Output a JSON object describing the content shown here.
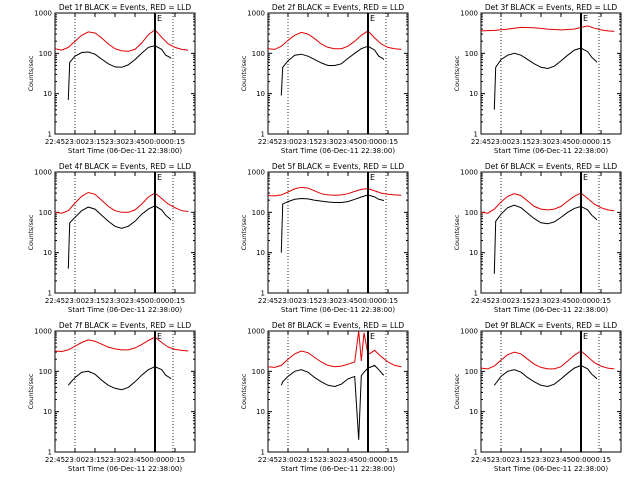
{
  "chart_data": [
    {
      "type": "line",
      "title": "Det 1f BLACK = Events, RED = LLD",
      "xlabel": "Start Time (06-Dec-11 22:38:00)",
      "ylabel": "Counts/sec",
      "x_ticks": [
        "22:45",
        "23:00",
        "23:15",
        "23:30",
        "23:45",
        "00:00",
        "00:15"
      ],
      "y_ticks": [
        "1",
        "10",
        "100",
        "1000"
      ],
      "yscale": "log",
      "ylim": [
        1,
        1000
      ],
      "xlim_minutes": [
        0,
        105
      ],
      "marker_label": "E",
      "series": [
        {
          "color": "#000000",
          "x": [
            10,
            11,
            15,
            20,
            25,
            30,
            35,
            40,
            45,
            50,
            55,
            60,
            65,
            70,
            75,
            80,
            83,
            86,
            87
          ],
          "y": [
            7,
            60,
            85,
            105,
            108,
            95,
            72,
            55,
            46,
            45,
            52,
            70,
            100,
            140,
            155,
            125,
            90,
            80,
            75
          ]
        },
        {
          "color": "#e00000",
          "x": [
            0,
            5,
            10,
            15,
            20,
            25,
            30,
            35,
            40,
            45,
            50,
            55,
            60,
            65,
            70,
            75,
            80,
            85,
            90,
            95,
            100
          ],
          "y": [
            130,
            120,
            140,
            200,
            280,
            340,
            320,
            240,
            170,
            130,
            115,
            112,
            125,
            180,
            290,
            380,
            250,
            170,
            140,
            125,
            120
          ]
        }
      ]
    },
    {
      "type": "line",
      "title": "Det 2f BLACK = Events, RED = LLD",
      "xlabel": "Start Time (06-Dec-11 22:38:00)",
      "ylabel": "Counts/sec",
      "x_ticks": [
        "22:45",
        "23:00",
        "23:15",
        "23:30",
        "23:45",
        "00:00",
        "00:15"
      ],
      "y_ticks": [
        "1",
        "10",
        "100",
        "1000"
      ],
      "yscale": "log",
      "ylim": [
        1,
        1000
      ],
      "xlim_minutes": [
        0,
        105
      ],
      "marker_label": "E",
      "series": [
        {
          "color": "#000000",
          "x": [
            10,
            11,
            15,
            20,
            25,
            30,
            35,
            40,
            45,
            50,
            55,
            60,
            65,
            70,
            75,
            80,
            83,
            86,
            87
          ],
          "y": [
            9,
            45,
            65,
            90,
            95,
            85,
            70,
            58,
            50,
            50,
            55,
            75,
            100,
            130,
            150,
            120,
            85,
            75,
            70
          ]
        },
        {
          "color": "#e00000",
          "x": [
            0,
            5,
            10,
            15,
            20,
            25,
            30,
            35,
            40,
            45,
            50,
            55,
            60,
            65,
            70,
            75,
            80,
            85,
            90,
            95,
            100
          ],
          "y": [
            130,
            125,
            150,
            210,
            280,
            330,
            300,
            230,
            170,
            140,
            130,
            130,
            150,
            200,
            280,
            360,
            240,
            170,
            140,
            130,
            125
          ]
        }
      ]
    },
    {
      "type": "line",
      "title": "Det 3f BLACK = Events, RED = LLD",
      "xlabel": "Start Time (06-Dec-11 22:38:00)",
      "ylabel": "Counts/sec",
      "x_ticks": [
        "22:45",
        "23:00",
        "23:15",
        "23:30",
        "23:45",
        "00:00",
        "00:15"
      ],
      "y_ticks": [
        "1",
        "10",
        "100",
        "1000"
      ],
      "yscale": "log",
      "ylim": [
        1,
        1000
      ],
      "xlim_minutes": [
        0,
        105
      ],
      "marker_label": "E",
      "series": [
        {
          "color": "#000000",
          "x": [
            10,
            11,
            15,
            20,
            25,
            30,
            35,
            40,
            45,
            50,
            55,
            60,
            65,
            70,
            75,
            80,
            83,
            86,
            87
          ],
          "y": [
            4,
            45,
            70,
            90,
            100,
            90,
            70,
            55,
            45,
            42,
            48,
            65,
            90,
            120,
            135,
            110,
            80,
            65,
            60
          ]
        },
        {
          "color": "#e00000",
          "x": [
            0,
            10,
            20,
            30,
            40,
            50,
            60,
            70,
            75,
            80,
            85,
            90,
            95,
            100
          ],
          "y": [
            360,
            370,
            400,
            440,
            430,
            400,
            380,
            400,
            440,
            480,
            420,
            380,
            360,
            350
          ]
        }
      ]
    },
    {
      "type": "line",
      "title": "Det 4f BLACK = Events, RED = LLD",
      "xlabel": "Start Time (06-Dec-11 22:38:00)",
      "ylabel": "Counts/sec",
      "x_ticks": [
        "22:45",
        "23:00",
        "23:15",
        "23:30",
        "23:45",
        "00:00",
        "00:15"
      ],
      "y_ticks": [
        "1",
        "10",
        "100",
        "1000"
      ],
      "yscale": "log",
      "ylim": [
        1,
        1000
      ],
      "xlim_minutes": [
        0,
        105
      ],
      "marker_label": "E",
      "series": [
        {
          "color": "#000000",
          "x": [
            10,
            11,
            15,
            20,
            25,
            30,
            35,
            40,
            45,
            50,
            55,
            60,
            65,
            70,
            75,
            80,
            83,
            86,
            87
          ],
          "y": [
            4,
            55,
            75,
            110,
            135,
            120,
            85,
            60,
            45,
            40,
            45,
            60,
            90,
            120,
            145,
            115,
            85,
            70,
            65
          ]
        },
        {
          "color": "#e00000",
          "x": [
            0,
            5,
            10,
            15,
            20,
            25,
            30,
            35,
            40,
            45,
            50,
            55,
            60,
            65,
            70,
            75,
            80,
            85,
            90,
            95,
            100
          ],
          "y": [
            100,
            95,
            110,
            170,
            250,
            310,
            280,
            200,
            140,
            110,
            100,
            100,
            115,
            160,
            240,
            300,
            220,
            160,
            130,
            110,
            105
          ]
        }
      ]
    },
    {
      "type": "line",
      "title": "Det 5f BLACK = Events, RED = LLD",
      "xlabel": "Start Time (06-Dec-11 22:38:00)",
      "ylabel": "Counts/sec",
      "x_ticks": [
        "22:45",
        "23:00",
        "23:15",
        "23:30",
        "23:45",
        "00:00",
        "00:15"
      ],
      "y_ticks": [
        "1",
        "10",
        "100",
        "1000"
      ],
      "yscale": "log",
      "ylim": [
        1,
        1000
      ],
      "xlim_minutes": [
        0,
        105
      ],
      "marker_label": "E",
      "series": [
        {
          "color": "#000000",
          "x": [
            10,
            11,
            15,
            20,
            25,
            30,
            35,
            40,
            45,
            50,
            55,
            60,
            65,
            70,
            75,
            80,
            83,
            86,
            87
          ],
          "y": [
            10,
            160,
            185,
            210,
            220,
            215,
            200,
            190,
            180,
            175,
            175,
            185,
            210,
            240,
            270,
            240,
            210,
            200,
            195
          ]
        },
        {
          "color": "#e00000",
          "x": [
            0,
            5,
            10,
            15,
            20,
            25,
            30,
            35,
            40,
            45,
            50,
            55,
            60,
            65,
            70,
            75,
            80,
            85,
            90,
            95,
            100
          ],
          "y": [
            260,
            255,
            270,
            320,
            380,
            420,
            400,
            340,
            290,
            270,
            265,
            270,
            290,
            330,
            370,
            390,
            340,
            300,
            280,
            270,
            265
          ]
        }
      ]
    },
    {
      "type": "line",
      "title": "Det 6f BLACK = Events, RED = LLD",
      "xlabel": "Start Time (06-Dec-11 22:38:00)",
      "ylabel": "Counts/sec",
      "x_ticks": [
        "22:45",
        "23:00",
        "23:15",
        "23:30",
        "23:45",
        "00:00",
        "00:15"
      ],
      "y_ticks": [
        "1",
        "10",
        "100",
        "1000"
      ],
      "yscale": "log",
      "ylim": [
        1,
        1000
      ],
      "xlim_minutes": [
        0,
        105
      ],
      "marker_label": "E",
      "series": [
        {
          "color": "#000000",
          "x": [
            10,
            11,
            15,
            20,
            25,
            30,
            35,
            40,
            45,
            50,
            55,
            60,
            65,
            70,
            75,
            80,
            83,
            86,
            87
          ],
          "y": [
            3,
            60,
            90,
            130,
            150,
            130,
            95,
            70,
            55,
            52,
            58,
            75,
            100,
            125,
            140,
            115,
            85,
            70,
            65
          ]
        },
        {
          "color": "#e00000",
          "x": [
            0,
            5,
            10,
            15,
            20,
            25,
            30,
            35,
            40,
            45,
            50,
            55,
            60,
            65,
            70,
            75,
            80,
            85,
            90,
            95,
            100
          ],
          "y": [
            100,
            95,
            120,
            180,
            250,
            290,
            260,
            190,
            140,
            120,
            115,
            120,
            140,
            190,
            250,
            300,
            220,
            160,
            130,
            115,
            110
          ]
        }
      ]
    },
    {
      "type": "line",
      "title": "Det 7f BLACK = Events, RED = LLD",
      "xlabel": "Start Time (06-Dec-11 22:38:00)",
      "ylabel": "Counts/sec",
      "x_ticks": [
        "22:45",
        "23:00",
        "23:15",
        "23:30",
        "23:45",
        "00:00",
        "00:15"
      ],
      "y_ticks": [
        "1",
        "10",
        "100",
        "1000"
      ],
      "yscale": "log",
      "ylim": [
        1,
        1000
      ],
      "xlim_minutes": [
        0,
        105
      ],
      "marker_label": "E",
      "series": [
        {
          "color": "#000000",
          "x": [
            10,
            11,
            15,
            20,
            25,
            30,
            35,
            40,
            45,
            50,
            55,
            60,
            65,
            70,
            75,
            80,
            83,
            86,
            87
          ],
          "y": [
            45,
            50,
            70,
            95,
            100,
            85,
            60,
            45,
            38,
            35,
            40,
            55,
            80,
            110,
            130,
            110,
            80,
            70,
            65
          ]
        },
        {
          "color": "#e00000",
          "x": [
            0,
            5,
            10,
            15,
            20,
            25,
            30,
            35,
            40,
            45,
            50,
            55,
            60,
            65,
            70,
            75,
            80,
            85,
            90,
            95,
            100
          ],
          "y": [
            320,
            310,
            340,
            420,
            520,
            600,
            560,
            470,
            400,
            360,
            340,
            340,
            380,
            460,
            580,
            700,
            520,
            400,
            350,
            330,
            320
          ]
        }
      ]
    },
    {
      "type": "line",
      "title": "Det 8f BLACK = Events, RED = LLD",
      "xlabel": "Start Time (06-Dec-11 22:38:00)",
      "ylabel": "Counts/sec",
      "x_ticks": [
        "22:45",
        "23:00",
        "23:15",
        "23:30",
        "23:45",
        "00:00",
        "00:15"
      ],
      "y_ticks": [
        "1",
        "10",
        "100",
        "1000"
      ],
      "yscale": "log",
      "ylim": [
        1,
        1000
      ],
      "xlim_minutes": [
        0,
        105
      ],
      "marker_label": "E",
      "series": [
        {
          "color": "#000000",
          "x": [
            10,
            11,
            15,
            20,
            25,
            30,
            35,
            40,
            45,
            50,
            55,
            60,
            65,
            68,
            70,
            72,
            75,
            80,
            83,
            86,
            87
          ],
          "y": [
            45,
            55,
            75,
            100,
            110,
            95,
            70,
            55,
            45,
            42,
            48,
            65,
            75,
            2,
            78,
            95,
            120,
            140,
            110,
            85,
            80
          ]
        },
        {
          "color": "#e00000",
          "x": [
            0,
            5,
            10,
            15,
            20,
            25,
            30,
            35,
            40,
            45,
            50,
            55,
            60,
            65,
            68,
            70,
            72,
            75,
            80,
            85,
            90,
            95,
            100
          ],
          "y": [
            130,
            125,
            140,
            200,
            270,
            320,
            290,
            220,
            170,
            140,
            130,
            135,
            150,
            170,
            1000,
            180,
            900,
            260,
            330,
            230,
            170,
            140,
            130
          ]
        }
      ]
    },
    {
      "type": "line",
      "title": "Det 9f BLACK = Events, RED = LLD",
      "xlabel": "Start Time (06-Dec-11 22:38:00)",
      "ylabel": "Counts/sec",
      "x_ticks": [
        "22:45",
        "23:00",
        "23:15",
        "23:30",
        "23:45",
        "00:00",
        "00:15"
      ],
      "y_ticks": [
        "1",
        "10",
        "100",
        "1000"
      ],
      "yscale": "log",
      "ylim": [
        1,
        1000
      ],
      "xlim_minutes": [
        0,
        105
      ],
      "marker_label": "E",
      "series": [
        {
          "color": "#000000",
          "x": [
            10,
            11,
            15,
            20,
            25,
            30,
            35,
            40,
            45,
            50,
            55,
            60,
            65,
            70,
            75,
            80,
            83,
            86,
            87
          ],
          "y": [
            45,
            50,
            75,
            100,
            110,
            95,
            70,
            55,
            45,
            42,
            48,
            65,
            90,
            120,
            140,
            115,
            85,
            70,
            65
          ]
        },
        {
          "color": "#e00000",
          "x": [
            0,
            5,
            10,
            15,
            20,
            25,
            30,
            35,
            40,
            45,
            50,
            55,
            60,
            65,
            70,
            75,
            80,
            85,
            90,
            95,
            100
          ],
          "y": [
            120,
            115,
            135,
            190,
            260,
            300,
            270,
            200,
            150,
            125,
            115,
            115,
            130,
            180,
            250,
            320,
            230,
            165,
            135,
            120,
            115
          ]
        }
      ]
    }
  ]
}
